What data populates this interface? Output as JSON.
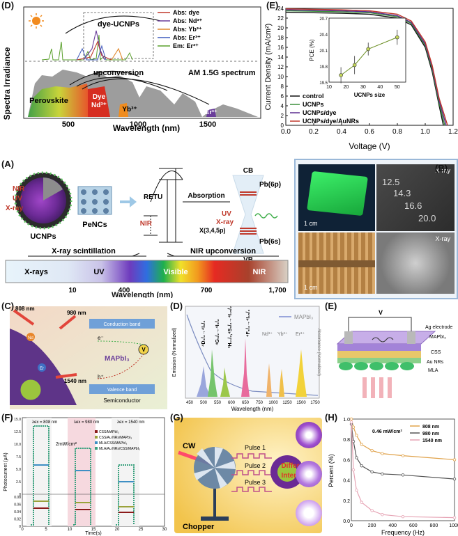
{
  "panel_D_top": {
    "label": "(D)",
    "ylabel": "Spectra Irradiance",
    "xlabel": "Wavelength (nm)",
    "xticks": [
      "500",
      "1000",
      "1500"
    ],
    "group_label": "dye-UCNPs",
    "upconversion_label": "upconversion",
    "spectrum_label": "AM 1.5G spectrum",
    "regions": [
      "Perovskite",
      "Dye",
      "Nd³⁺",
      "Yb³⁺",
      "Er³⁺"
    ],
    "legend": [
      "Abs: dye",
      "Abs: Nd³⁺",
      "Abs: Yb³⁺",
      "Abs: Er³⁺",
      "Em: Er³⁺"
    ],
    "legend_colors": [
      "#c0392b",
      "#6a3d9a",
      "#e0872b",
      "#3f5bbd",
      "#5aa02c"
    ]
  },
  "panel_E_top": {
    "label": "(E)",
    "ylabel": "Current Density (mA/cm²)",
    "xlabel": "Voltage (V)",
    "xticks": [
      "0.0",
      "0.2",
      "0.4",
      "0.6",
      "0.8",
      "1.0",
      "1.2"
    ],
    "yticks": [
      "0",
      "2",
      "4",
      "6",
      "8",
      "10",
      "12",
      "14",
      "16",
      "18",
      "20",
      "22",
      "24"
    ],
    "legend": [
      "control",
      "UCNPs",
      "UCNPs/dye",
      "UCNPs/dye/AuNRs"
    ],
    "legend_colors": [
      "#111111",
      "#3a8f3a",
      "#5c2d91",
      "#c0392b"
    ],
    "inset": {
      "ylabel": "PCE (%)",
      "xlabel": "UCNPs size",
      "xticks": [
        "10",
        "20",
        "30",
        "40",
        "50"
      ],
      "yticks": [
        "19.5",
        "19.8",
        "20.1",
        "20.4",
        "20.7"
      ]
    }
  },
  "panel_A": {
    "label": "(A)",
    "retu": "RETU",
    "absorption": "Absorption",
    "cb": "CB",
    "vb": "VB",
    "pb6p": "Pb(6p)",
    "pb6s": "Pb(6s)",
    "x345p": "X(3,4,5p)",
    "nir": "NIR",
    "uv": "UV",
    "xray": "X-ray",
    "ucnps": "UCNPs",
    "pencs": "PeNCs",
    "xray_scint": "X-ray scintillation",
    "nir_upconv": "NIR upconversion",
    "bands": [
      "X-rays",
      "UV",
      "Visible",
      "NIR"
    ],
    "ticks": [
      "10",
      "400",
      "700",
      "1,700"
    ],
    "xlabel": "Wavelength (nm)"
  },
  "panel_B": {
    "label": "(B)",
    "xray1": "X-ray",
    "xray2": "X-ray",
    "scale1": "1 cm",
    "scale2": "1 cm",
    "digits": [
      "12.5",
      "14.3",
      "16.6",
      "20.0"
    ]
  },
  "panel_C": {
    "label": "(C)",
    "w808": "808 nm",
    "w980": "980 nm",
    "w1540": "1540 nm",
    "conduction": "Conduction band",
    "valence": "Valence band",
    "material": "MAPbI₃",
    "semiconductor": "Semiconductor",
    "e": "e⁻",
    "h": "h⁺",
    "v": "V",
    "nd": "Nd",
    "er": "Er"
  },
  "panel_D_mid": {
    "label": "(D)",
    "ylabel": "Emission (Normalized)",
    "ylabel2": "Absorbance (Normalized)",
    "xlabel": "Wavelength (nm)",
    "legend": "MAPbI₃",
    "xticks": [
      "450",
      "500",
      "550",
      "600",
      "650",
      "750",
      "1000",
      "1250",
      "1500",
      "1750"
    ],
    "peaks": [
      "⁴D₃/₂→⁴I₉/₂",
      "⁴G₅/₂→⁴I₉/₂",
      "²H₁₁/₂,⁴S₃/₂→⁴I₁₅/₂",
      "⁴F₉/₂→⁴I₁₅/₂"
    ],
    "ions": [
      "Nd³⁺",
      "Yb³⁺",
      "Er³⁺"
    ]
  },
  "panel_E_mid": {
    "label": "(E)",
    "v": "V",
    "ag": "Ag electrode",
    "mapbi3": "MAPbI₃",
    "css": "CSS",
    "aunrs": "Au NRs",
    "mla": "MLA"
  },
  "panel_F": {
    "label": "(F)",
    "ylabel": "Photocurrent (μA)",
    "xlabel": "Time(s)",
    "xticks": [
      "0",
      "5",
      "10",
      "15",
      "20",
      "25",
      "30"
    ],
    "yticks_top": [
      "0",
      "2.5",
      "5.0",
      "7.5",
      "10.0",
      "12.5",
      "15.0"
    ],
    "yticks_bottom": [
      "0",
      "0.02",
      "0.04",
      "0.06",
      "0.08"
    ],
    "ex1": "λex = 808 nm",
    "ex2": "λex = 980 nm",
    "ex3": "λex = 1540 nm",
    "power": "2mW/cm²",
    "legend": [
      "CSS/MAPbI₃",
      "CSS/Au NRs/MAPbI₃",
      "MLA/CSS/MAPbI₃",
      "MLA/Au NRs/CSS/MAPbI₃"
    ],
    "legend_colors": [
      "#8b1a1a",
      "#9aa23b",
      "#3e8fc4",
      "#3aa17e"
    ]
  },
  "panel_G": {
    "label": "(G)",
    "cw": "CW",
    "chopper": "Chopper",
    "pulses": [
      "Pulse 1",
      "Pulse 2",
      "Pulse 3"
    ],
    "different": "Different",
    "intensity": "Intensity"
  },
  "panel_H": {
    "label": "(H)",
    "ylabel": "Percent (%)",
    "xlabel": "Frequency (Hz)",
    "power": "0.46 mW/cm²",
    "legend": [
      "808 nm",
      "980 nm",
      "1540 nm"
    ],
    "legend_colors": [
      "#e0a24a",
      "#555555",
      "#e6a3b4"
    ],
    "xticks": [
      "0",
      "200",
      "400",
      "600",
      "800",
      "1000"
    ],
    "yticks": [
      "0.0",
      "0.2",
      "0.4",
      "0.6",
      "0.8",
      "1.0"
    ]
  },
  "chart_data": [
    {
      "type": "line",
      "title": "",
      "xlabel": "Voltage (V)",
      "ylabel": "Current Density (mA/cm²)",
      "xlim": [
        0.0,
        1.2
      ],
      "ylim": [
        0,
        24
      ],
      "series": [
        {
          "name": "control",
          "x": [
            0.0,
            0.2,
            0.4,
            0.6,
            0.8,
            0.9,
            1.0,
            1.05,
            1.1,
            1.13
          ],
          "y": [
            23.2,
            23.1,
            23.0,
            22.8,
            22.0,
            20.6,
            16.0,
            11.0,
            4.0,
            0.0
          ]
        },
        {
          "name": "UCNPs",
          "x": [
            0.0,
            0.2,
            0.4,
            0.6,
            0.8,
            0.9,
            1.0,
            1.05,
            1.1,
            1.14
          ],
          "y": [
            23.5,
            23.4,
            23.3,
            23.1,
            22.3,
            20.9,
            16.4,
            11.5,
            4.5,
            0.0
          ]
        },
        {
          "name": "UCNPs/dye",
          "x": [
            0.0,
            0.2,
            0.4,
            0.6,
            0.8,
            0.9,
            1.0,
            1.05,
            1.1,
            1.15
          ],
          "y": [
            23.7,
            23.6,
            23.5,
            23.3,
            22.5,
            21.1,
            16.7,
            11.9,
            5.0,
            0.0
          ]
        },
        {
          "name": "UCNPs/dye/AuNRs",
          "x": [
            0.0,
            0.2,
            0.4,
            0.6,
            0.8,
            0.9,
            1.0,
            1.05,
            1.1,
            1.16
          ],
          "y": [
            23.9,
            23.8,
            23.7,
            23.5,
            22.8,
            21.4,
            17.1,
            12.3,
            5.5,
            0.0
          ]
        }
      ]
    },
    {
      "type": "scatter",
      "title": "",
      "xlabel": "UCNPs size",
      "ylabel": "PCE (%)",
      "xlim": [
        10,
        55
      ],
      "ylim": [
        19.5,
        20.7
      ],
      "series": [
        {
          "name": "",
          "x": [
            17,
            25,
            33,
            50
          ],
          "y": [
            19.63,
            19.82,
            20.12,
            20.34
          ],
          "err": [
            0.15,
            0.17,
            0.12,
            0.14
          ]
        }
      ]
    },
    {
      "type": "line",
      "title": "",
      "xlabel": "Frequency (Hz)",
      "ylabel": "Percent (%)",
      "xlim": [
        0,
        1000
      ],
      "ylim": [
        0,
        1
      ],
      "series": [
        {
          "name": "808 nm",
          "x": [
            0,
            20,
            50,
            100,
            200,
            300,
            500,
            1000
          ],
          "y": [
            1.0,
            0.92,
            0.84,
            0.75,
            0.69,
            0.66,
            0.64,
            0.6
          ]
        },
        {
          "name": "980 nm",
          "x": [
            0,
            20,
            50,
            100,
            200,
            300,
            500,
            1000
          ],
          "y": [
            0.95,
            0.78,
            0.62,
            0.54,
            0.48,
            0.46,
            0.45,
            0.41
          ]
        },
        {
          "name": "1540 nm",
          "x": [
            0,
            20,
            50,
            100,
            200,
            300,
            500,
            1000
          ],
          "y": [
            0.97,
            0.5,
            0.3,
            0.18,
            0.1,
            0.06,
            0.04,
            0.03
          ]
        }
      ]
    }
  ]
}
